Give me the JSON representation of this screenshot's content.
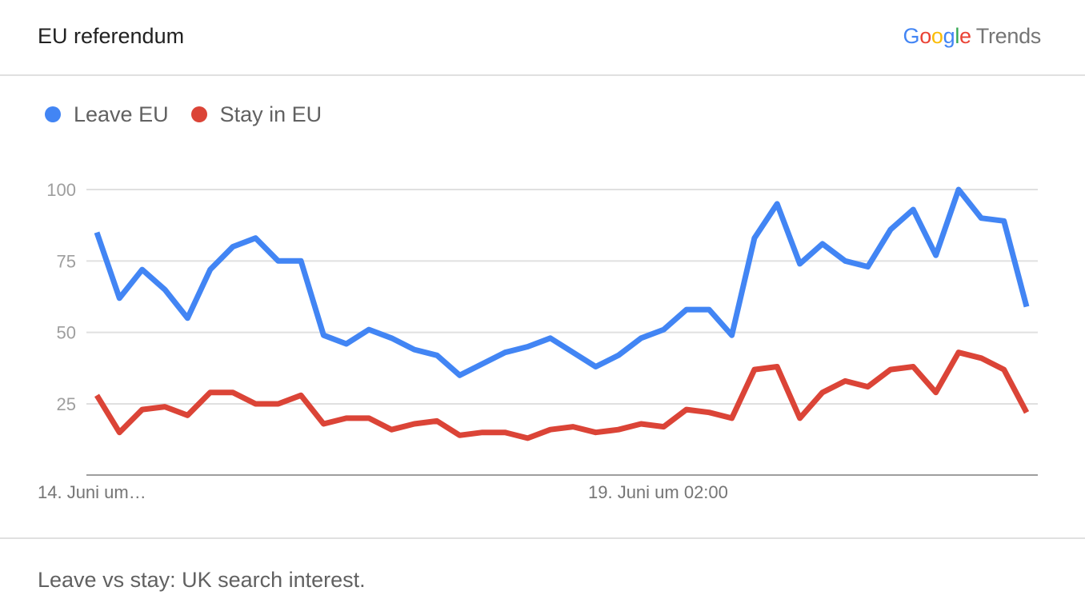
{
  "header": {
    "title": "EU referendum",
    "brand_google": [
      "G",
      "o",
      "o",
      "g",
      "l",
      "e"
    ],
    "brand_trends": "Trends"
  },
  "legend": [
    {
      "label": "Leave EU",
      "color": "#4285f4"
    },
    {
      "label": "Stay in EU",
      "color": "#db4437"
    }
  ],
  "chart_data": {
    "type": "line",
    "title": "EU referendum",
    "xlabel": "",
    "ylabel": "",
    "x_tick_labels": [
      "14. Juni um…",
      "19. Juni um 02:00"
    ],
    "y_ticks": [
      25,
      50,
      75,
      100
    ],
    "ylim": [
      0,
      100
    ],
    "grid": true,
    "legend_position": "top-left",
    "series": [
      {
        "name": "Leave EU",
        "color": "#4285f4",
        "values": [
          85,
          62,
          72,
          65,
          55,
          72,
          80,
          83,
          75,
          75,
          49,
          46,
          51,
          48,
          44,
          42,
          35,
          39,
          43,
          45,
          48,
          43,
          38,
          42,
          48,
          51,
          58,
          58,
          49,
          83,
          95,
          74,
          81,
          75,
          73,
          86,
          93,
          77,
          100,
          90,
          89,
          59
        ]
      },
      {
        "name": "Stay in EU",
        "color": "#db4437",
        "values": [
          28,
          15,
          23,
          24,
          21,
          29,
          29,
          25,
          25,
          28,
          18,
          20,
          20,
          16,
          18,
          19,
          14,
          15,
          15,
          13,
          16,
          17,
          15,
          16,
          18,
          17,
          23,
          22,
          20,
          37,
          38,
          20,
          29,
          33,
          31,
          37,
          38,
          29,
          43,
          41,
          37,
          22
        ]
      }
    ]
  },
  "footer": {
    "caption": "Leave vs stay: UK search interest."
  }
}
